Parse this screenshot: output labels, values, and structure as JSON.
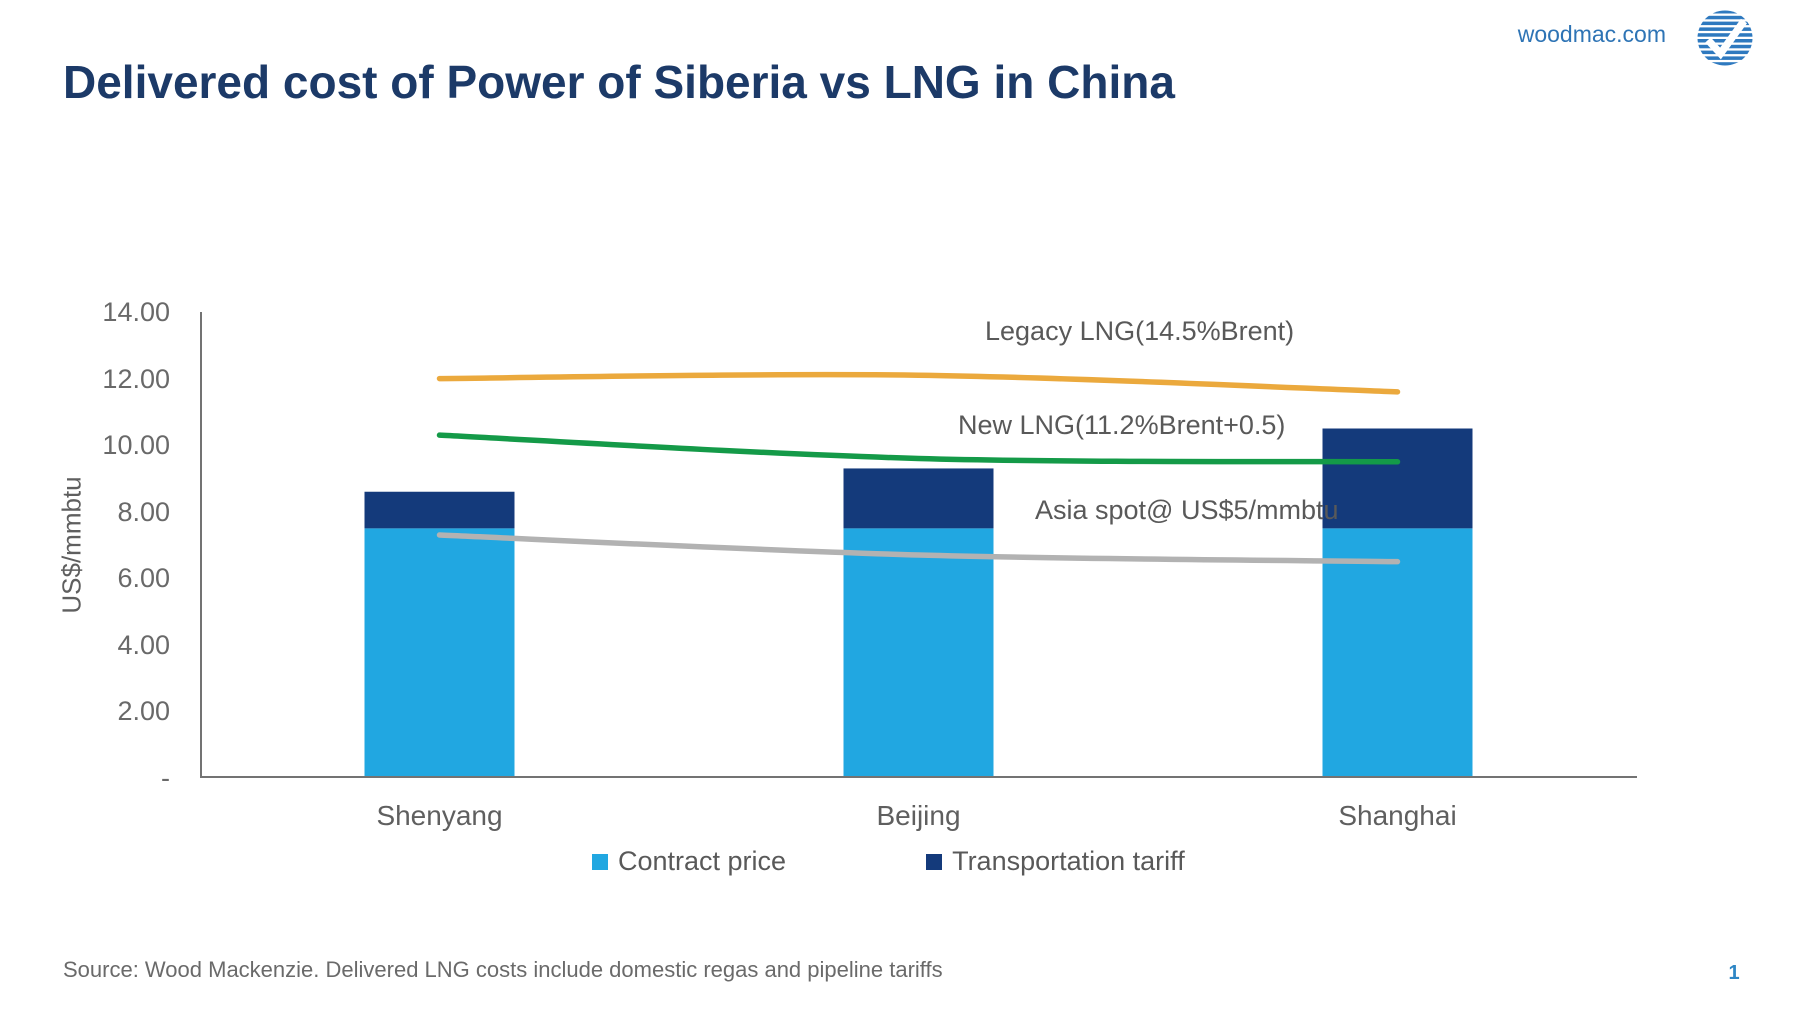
{
  "header": {
    "title": "Delivered cost of Power of Siberia vs LNG in China",
    "site": "woodmac.com",
    "brand_blue": "#2e74b5",
    "title_color": "#1c3a68"
  },
  "footer": {
    "source": "Source: Wood Mackenzie. Delivered LNG costs include domestic regas and pipeline tariffs",
    "page_number": "1"
  },
  "chart_data": {
    "type": "combo: stacked bar + smoothed line",
    "categories": [
      "Shenyang",
      "Beijing",
      "Shanghai"
    ],
    "bar_series": [
      {
        "name": "Contract price",
        "color": "#21a7e1",
        "values": [
          7.5,
          7.5,
          7.5
        ]
      },
      {
        "name": "Transportation tariff",
        "color": "#143a7b",
        "values": [
          1.1,
          1.8,
          3.0
        ]
      }
    ],
    "line_series": [
      {
        "name": "Legacy LNG(14.5%Brent)",
        "color": "#eba93d",
        "width": 5.5,
        "values": [
          12.0,
          12.1,
          11.6
        ]
      },
      {
        "name": "New LNG(11.2%Brent+0.5)",
        "color": "#149a48",
        "width": 5.5,
        "values": [
          10.3,
          9.6,
          9.5
        ]
      },
      {
        "name": "Asia spot@ US$5/mmbtu",
        "color": "#b2b2b2",
        "width": 5.5,
        "values": [
          7.3,
          6.7,
          6.5
        ]
      }
    ],
    "annotations": [
      {
        "text": "Legacy LNG(14.5%Brent)"
      },
      {
        "text": "New LNG(11.2%Brent+0.5)"
      },
      {
        "text": "Asia spot@ US$5/mmbtu"
      }
    ],
    "ylabel": "US$/mmbtu",
    "ylim": [
      0,
      14
    ],
    "ytick_step": 2,
    "yticks": [
      "14.00",
      "12.00",
      "10.00",
      "8.00",
      "6.00",
      "4.00",
      "2.00",
      "-"
    ],
    "grid": "off",
    "legend_position": "bottom",
    "axis_color": "#737373"
  }
}
